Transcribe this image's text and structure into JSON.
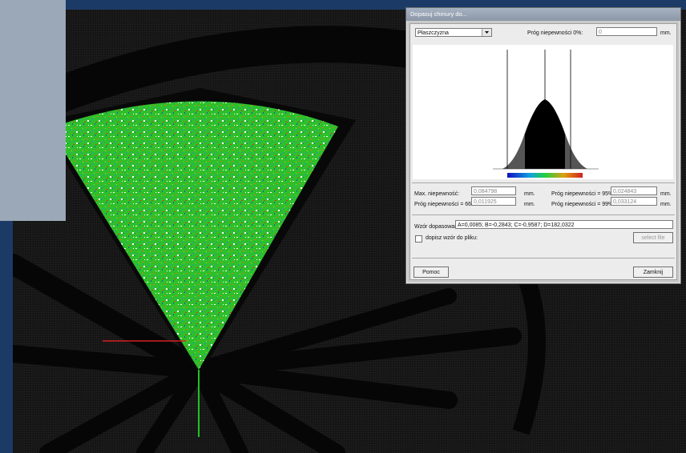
{
  "dialog": {
    "title": "Dopasuj chmury do...",
    "mode_select": {
      "value": "Płaszczyzna",
      "arrow_icon": "chevron-down-icon"
    },
    "threshold_label": "Próg niepewności 0%:",
    "threshold_value": "0",
    "unit_mm": "mm.",
    "max_uncertainty_label": "Max. niepewność:",
    "max_uncertainty_value": "0,084798",
    "threshold_66_label": "Próg niepewności = 66%",
    "threshold_66_value": "0,011925",
    "threshold_95_label": "Próg niepewności = 95%",
    "threshold_95_value": "0,024843",
    "threshold_99_label": "Próg niepewności = 99%",
    "threshold_99_value": "0,033124",
    "formula_label": "Wzór dopasowania",
    "formula_value": "A=0,0085; B=-0,2843; C=-0,9587; D=182,0322",
    "append_checkbox_label": "dopisz wzór do pliku:",
    "append_checked": false,
    "select_file_button": "select file",
    "help_button": "Pomoc",
    "close_button": "Zamknij"
  },
  "colors": {
    "desktop_blue": "#1c3560",
    "viewport_bg": "#141414",
    "cloud_green": "#33c82a",
    "axis_x": "#e02020",
    "axis_y": "#20c020",
    "dialog_title_gradient": "#8b97a6"
  }
}
